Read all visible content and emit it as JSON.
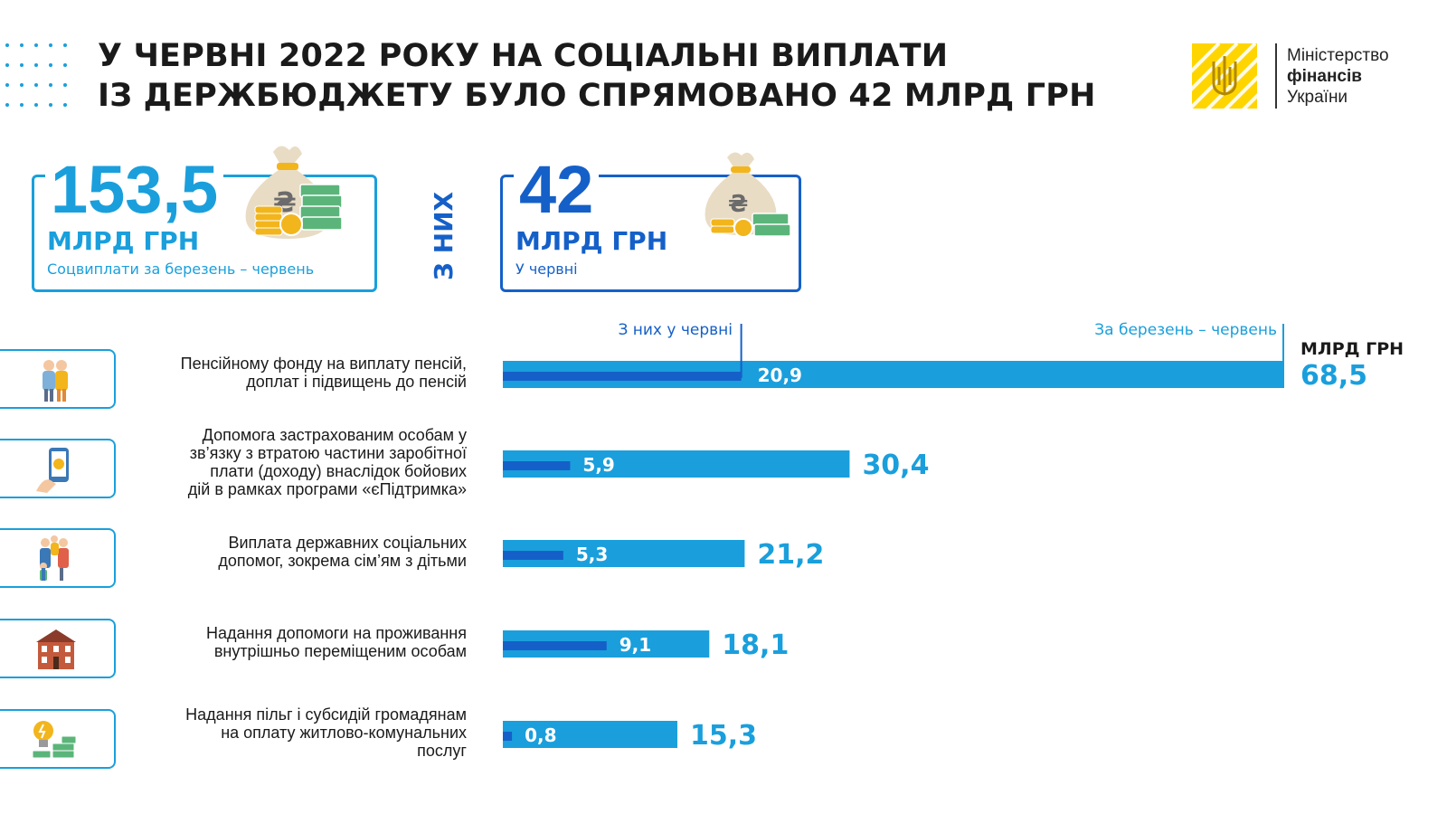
{
  "title": {
    "line1": "У ЧЕРВНІ 2022 РОКУ НА СОЦІАЛЬНІ ВИПЛАТИ",
    "line2": "ІЗ  ДЕРЖБЮДЖЕТУ БУЛО СПРЯМОВАНО 42 МЛРД ГРН"
  },
  "logo": {
    "line1": "Міністерство",
    "line2": "фінансів",
    "line3": "України"
  },
  "summary": {
    "total": {
      "value": "153,5",
      "unit": "МЛРД ГРН",
      "caption": "Соцвиплати за березень – червень"
    },
    "of_which_label": "З НИХ",
    "june": {
      "value": "42",
      "unit": "МЛРД ГРН",
      "caption": "У червні"
    }
  },
  "colors": {
    "light_blue": "#1a9fdc",
    "dark_blue": "#1560c8",
    "yellow": "#ffd500",
    "money_green": "#5bb57a",
    "coin_gold": "#f2b51c",
    "bag_beige": "#e9dcc4"
  },
  "chart_data": {
    "type": "bar",
    "orientation": "horizontal",
    "unit_label": "МЛРД ГРН",
    "legend": {
      "june": "З них у червні",
      "total": "За березень –  червень"
    },
    "categories": [
      "Пенсійному фонду на виплату пенсій,\nдоплат і підвищень до пенсій",
      "Допомога застрахованим особам у\nзв’язку з втратою частини заробітної\nплати (доходу) внаслідок бойових\nдій в рамках програми «єПідтримка»",
      "Виплата державних соціальних\nдопомог, зокрема сім’ям з дітьми",
      "Надання допомоги на проживання\nвнутрішньо переміщеним особам",
      "Надання пільг і субсидій громадянам\nна оплату житлово-комунальних\nпослуг"
    ],
    "icons": [
      "elderly-couple-icon",
      "phone-hand-icon",
      "family-icon",
      "house-icon",
      "bulb-money-icon"
    ],
    "series": [
      {
        "name": "За березень –  червень",
        "values": [
          68.5,
          30.4,
          21.2,
          18.1,
          15.3
        ],
        "labels": [
          "68,5",
          "30,4",
          "21,2",
          "18,1",
          "15,3"
        ]
      },
      {
        "name": "З них у червні",
        "values": [
          20.9,
          5.9,
          5.3,
          9.1,
          0.8
        ],
        "labels": [
          "20,9",
          "5,9",
          "5,3",
          "9,1",
          "0,8"
        ]
      }
    ]
  }
}
